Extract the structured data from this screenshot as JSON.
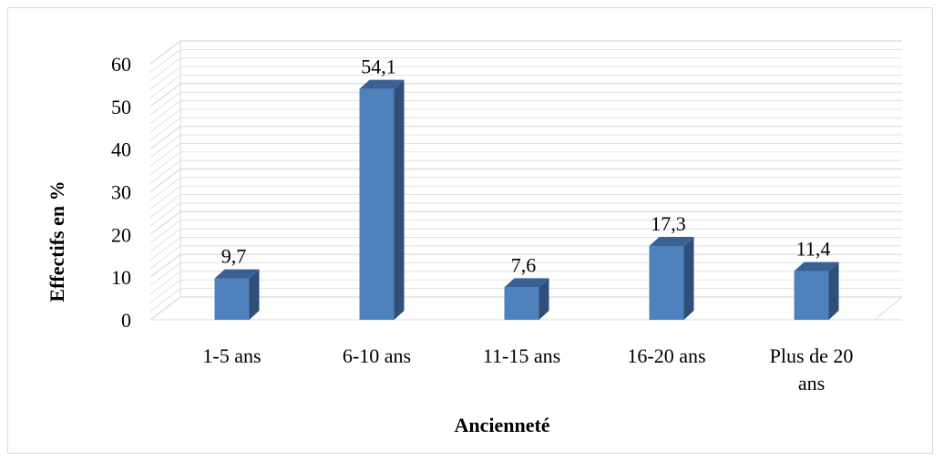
{
  "chart_data": {
    "type": "bar",
    "style": "3d-column",
    "categories": [
      "1-5 ans",
      "6-10 ans",
      "11-15 ans",
      "16-20 ans",
      "Plus de 20 ans"
    ],
    "category_lines": [
      [
        "1-5 ans"
      ],
      [
        "6-10 ans"
      ],
      [
        "11-15 ans"
      ],
      [
        "16-20 ans"
      ],
      [
        "Plus de 20",
        "ans"
      ]
    ],
    "values": [
      9.7,
      54.1,
      7.6,
      17.3,
      11.4
    ],
    "value_labels": [
      "9,7",
      "54,1",
      "7,6",
      "17,3",
      "11,4"
    ],
    "title": "",
    "xlabel": "Ancienneté",
    "ylabel": "Effectifs en %",
    "ylim": [
      0,
      60
    ],
    "yticks": [
      "0",
      "10",
      "20",
      "30",
      "40",
      "50",
      "60"
    ],
    "grid": true,
    "legend": "none",
    "colors": {
      "bar_front": "#4f81bd",
      "bar_side": "#2e4f79",
      "bar_top": "#3a6194",
      "grid": "#d9d9d9"
    }
  }
}
